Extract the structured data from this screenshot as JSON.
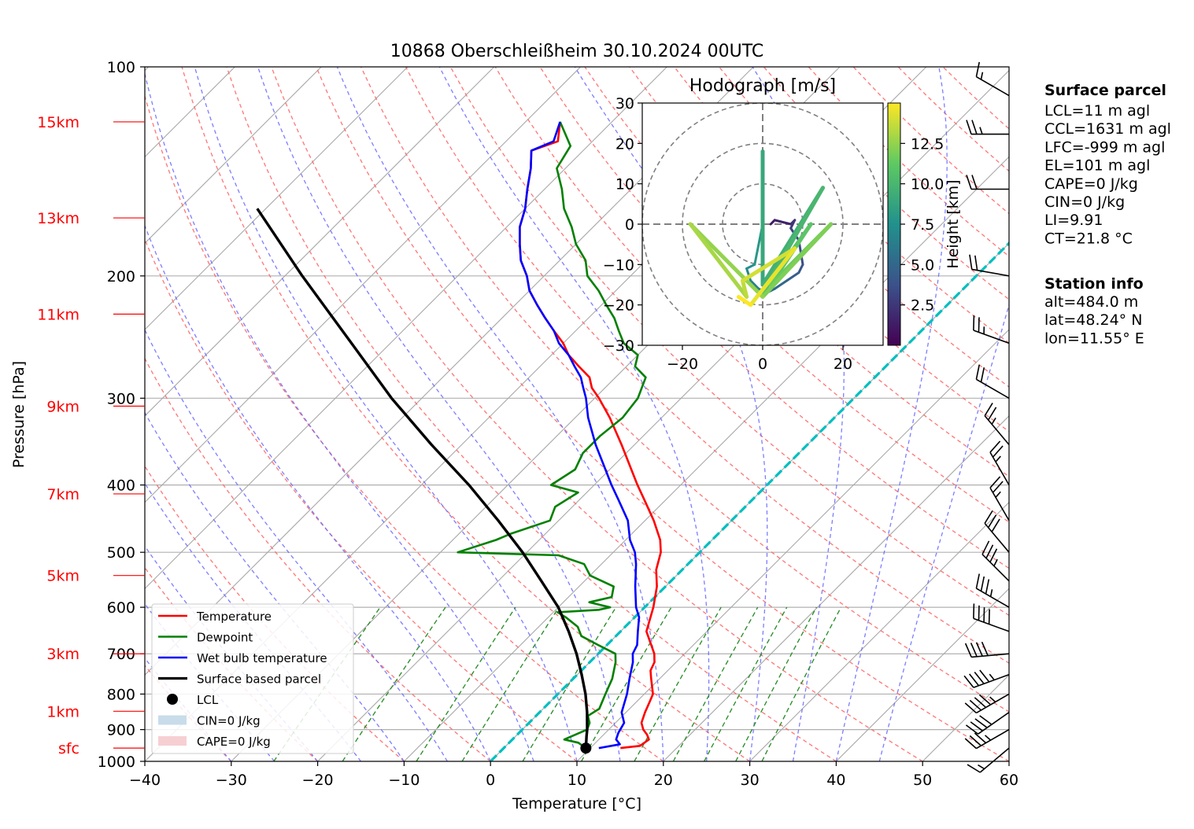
{
  "chart_data": {
    "type": "line",
    "title": "10868 Oberschleißheim 30.10.2024 00UTC",
    "xlabel": "Temperature [°C]",
    "ylabel": "Pressure [hPa]",
    "xlim": [
      -40,
      60
    ],
    "ylim": [
      1000,
      100
    ],
    "y_scale": "log",
    "skew": "45 degrees",
    "grid": true,
    "x_ticks": [
      "−40",
      "−30",
      "−20",
      "−10",
      "0",
      "10",
      "20",
      "30",
      "40",
      "50",
      "60"
    ],
    "y_ticks": [
      {
        "label": "100",
        "p": 100
      },
      {
        "label": "200",
        "p": 200
      },
      {
        "label": "300",
        "p": 300
      },
      {
        "label": "400",
        "p": 400
      },
      {
        "label": "500",
        "p": 500
      },
      {
        "label": "600",
        "p": 600
      },
      {
        "label": "700",
        "p": 700
      },
      {
        "label": "800",
        "p": 800
      },
      {
        "label": "900",
        "p": 900
      },
      {
        "label": "1000",
        "p": 1000
      }
    ],
    "height_labels": [
      {
        "label": "sfc",
        "p": 957
      },
      {
        "label": "1km",
        "p": 847
      },
      {
        "label": "3km",
        "p": 700
      },
      {
        "label": "5km",
        "p": 540
      },
      {
        "label": "7km",
        "p": 412
      },
      {
        "label": "9km",
        "p": 308
      },
      {
        "label": "11km",
        "p": 227
      },
      {
        "label": "13km",
        "p": 165
      },
      {
        "label": "15km",
        "p": 120
      }
    ],
    "series": [
      {
        "name": "Temperature",
        "color": "#ff0000",
        "points": [
          [
            957,
            13.5
          ],
          [
            950,
            15.5
          ],
          [
            930,
            15.8
          ],
          [
            915,
            15.0
          ],
          [
            900,
            14.0
          ],
          [
            880,
            13.0
          ],
          [
            850,
            12.2
          ],
          [
            820,
            11.5
          ],
          [
            800,
            11.0
          ],
          [
            760,
            9.0
          ],
          [
            740,
            8.0
          ],
          [
            720,
            7.5
          ],
          [
            700,
            6.5
          ],
          [
            650,
            3.0
          ],
          [
            600,
            1.0
          ],
          [
            560,
            -1.0
          ],
          [
            530,
            -3.0
          ],
          [
            500,
            -4.5
          ],
          [
            480,
            -6.0
          ],
          [
            450,
            -9.0
          ],
          [
            420,
            -12.5
          ],
          [
            400,
            -15.0
          ],
          [
            380,
            -17.5
          ],
          [
            350,
            -21.5
          ],
          [
            320,
            -26.0
          ],
          [
            300,
            -29.5
          ],
          [
            290,
            -31.5
          ],
          [
            280,
            -33.0
          ],
          [
            270,
            -35.5
          ],
          [
            260,
            -38.0
          ],
          [
            250,
            -40.0
          ],
          [
            240,
            -42.5
          ],
          [
            230,
            -45.0
          ],
          [
            220,
            -47.5
          ],
          [
            210,
            -50.0
          ],
          [
            200,
            -52.0
          ],
          [
            190,
            -54.5
          ],
          [
            180,
            -56.5
          ],
          [
            170,
            -58.5
          ],
          [
            160,
            -60.0
          ],
          [
            150,
            -62.0
          ],
          [
            140,
            -64.0
          ],
          [
            132,
            -66.0
          ],
          [
            128,
            -64.0
          ],
          [
            120,
            -66.0
          ]
        ]
      },
      {
        "name": "Dewpoint",
        "color": "#008000",
        "points": [
          [
            957,
            9.5
          ],
          [
            940,
            8.0
          ],
          [
            930,
            6.0
          ],
          [
            900,
            7.5
          ],
          [
            880,
            7.0
          ],
          [
            860,
            6.0
          ],
          [
            840,
            6.5
          ],
          [
            800,
            5.5
          ],
          [
            760,
            4.5
          ],
          [
            720,
            3.0
          ],
          [
            700,
            2.0
          ],
          [
            680,
            -1.0
          ],
          [
            660,
            -4.0
          ],
          [
            640,
            -5.5
          ],
          [
            620,
            -8.0
          ],
          [
            610,
            -9.5
          ],
          [
            605,
            -5.0
          ],
          [
            600,
            -4.0
          ],
          [
            590,
            -7.0
          ],
          [
            580,
            -5.0
          ],
          [
            560,
            -6.0
          ],
          [
            540,
            -10.0
          ],
          [
            520,
            -12.0
          ],
          [
            505,
            -16.0
          ],
          [
            500,
            -28.0
          ],
          [
            480,
            -25.0
          ],
          [
            470,
            -24.0
          ],
          [
            450,
            -21.0
          ],
          [
            430,
            -22.0
          ],
          [
            410,
            -21.0
          ],
          [
            400,
            -25.0
          ],
          [
            380,
            -24.0
          ],
          [
            360,
            -25.0
          ],
          [
            340,
            -25.0
          ],
          [
            320,
            -24.5
          ],
          [
            300,
            -25.0
          ],
          [
            280,
            -26.5
          ],
          [
            270,
            -29.0
          ],
          [
            260,
            -30.0
          ],
          [
            250,
            -33.0
          ],
          [
            240,
            -35.0
          ],
          [
            230,
            -37.0
          ],
          [
            220,
            -39.5
          ],
          [
            210,
            -42.0
          ],
          [
            200,
            -45.0
          ],
          [
            190,
            -47.0
          ],
          [
            180,
            -50.0
          ],
          [
            170,
            -52.5
          ],
          [
            160,
            -55.5
          ],
          [
            150,
            -58.0
          ],
          [
            140,
            -61.0
          ],
          [
            130,
            -62.0
          ],
          [
            120,
            -66.0
          ]
        ]
      },
      {
        "name": "Wet bulb temperature",
        "color": "#0000ff",
        "points": [
          [
            957,
            11.0
          ],
          [
            945,
            13.0
          ],
          [
            930,
            12.0
          ],
          [
            910,
            11.5
          ],
          [
            880,
            11.0
          ],
          [
            850,
            9.5
          ],
          [
            800,
            8.0
          ],
          [
            760,
            6.5
          ],
          [
            720,
            5.0
          ],
          [
            700,
            4.0
          ],
          [
            680,
            3.5
          ],
          [
            650,
            2.0
          ],
          [
            620,
            0.5
          ],
          [
            600,
            -1.0
          ],
          [
            560,
            -3.5
          ],
          [
            520,
            -6.0
          ],
          [
            500,
            -7.5
          ],
          [
            480,
            -9.5
          ],
          [
            450,
            -12.0
          ],
          [
            420,
            -15.5
          ],
          [
            400,
            -18.0
          ],
          [
            380,
            -20.5
          ],
          [
            350,
            -24.5
          ],
          [
            320,
            -28.5
          ],
          [
            300,
            -31.0
          ],
          [
            290,
            -32.5
          ],
          [
            280,
            -34.0
          ],
          [
            270,
            -36.0
          ],
          [
            260,
            -38.0
          ],
          [
            250,
            -40.5
          ],
          [
            240,
            -42.5
          ],
          [
            230,
            -45.0
          ],
          [
            220,
            -47.5
          ],
          [
            210,
            -50.0
          ],
          [
            200,
            -52.0
          ],
          [
            190,
            -54.5
          ],
          [
            180,
            -56.5
          ],
          [
            170,
            -58.5
          ],
          [
            160,
            -60.0
          ],
          [
            150,
            -62.0
          ],
          [
            140,
            -64.0
          ],
          [
            132,
            -66.0
          ],
          [
            128,
            -64.5
          ],
          [
            120,
            -66.0
          ]
        ]
      },
      {
        "name": "Surface based parcel",
        "color": "#000000",
        "points": [
          [
            957,
            9.5
          ],
          [
            920,
            8.2
          ],
          [
            900,
            7.5
          ],
          [
            850,
            5.5
          ],
          [
            800,
            3.2
          ],
          [
            750,
            0.5
          ],
          [
            700,
            -2.5
          ],
          [
            650,
            -6.0
          ],
          [
            600,
            -10.0
          ],
          [
            550,
            -15.0
          ],
          [
            500,
            -20.5
          ],
          [
            450,
            -27.0
          ],
          [
            400,
            -34.5
          ],
          [
            350,
            -43.5
          ],
          [
            300,
            -53.5
          ],
          [
            250,
            -64.5
          ],
          [
            200,
            -78.0
          ],
          [
            160,
            -91.0
          ]
        ]
      }
    ],
    "lcl": {
      "label": "LCL",
      "p": 957,
      "t": 9.5
    },
    "fill_legend": [
      {
        "label": "CIN=0 J/kg",
        "color": "#c8dcea"
      },
      {
        "label": "CAPE=0 J/kg",
        "color": "#f6cfd2"
      }
    ],
    "zero_isotherm_line": {
      "color": "#00bfbf"
    },
    "dry_adiabat_color": "#ff6666",
    "moist_adiabat_color": "#6666ff",
    "mixing_ratio_color": "#228b22",
    "wind_barbs": [
      {
        "p": 957,
        "speed_kt": 15,
        "dir": 230
      },
      {
        "p": 900,
        "speed_kt": 35,
        "dir": 240
      },
      {
        "p": 850,
        "speed_kt": 40,
        "dir": 235
      },
      {
        "p": 800,
        "speed_kt": 45,
        "dir": 240
      },
      {
        "p": 750,
        "speed_kt": 45,
        "dir": 250
      },
      {
        "p": 700,
        "speed_kt": 40,
        "dir": 265
      },
      {
        "p": 650,
        "speed_kt": 40,
        "dir": 290
      },
      {
        "p": 600,
        "speed_kt": 35,
        "dir": 300
      },
      {
        "p": 550,
        "speed_kt": 35,
        "dir": 315
      },
      {
        "p": 500,
        "speed_kt": 30,
        "dir": 320
      },
      {
        "p": 450,
        "speed_kt": 25,
        "dir": 330
      },
      {
        "p": 400,
        "speed_kt": 25,
        "dir": 330
      },
      {
        "p": 350,
        "speed_kt": 25,
        "dir": 320
      },
      {
        "p": 300,
        "speed_kt": 20,
        "dir": 300
      },
      {
        "p": 250,
        "speed_kt": 25,
        "dir": 290
      },
      {
        "p": 200,
        "speed_kt": 20,
        "dir": 280
      },
      {
        "p": 150,
        "speed_kt": 20,
        "dir": 270
      },
      {
        "p": 125,
        "speed_kt": 25,
        "dir": 270
      },
      {
        "p": 110,
        "speed_kt": 15,
        "dir": 300
      }
    ],
    "hodograph": {
      "title": "Hodograph [m/s]",
      "xlim": [
        -30,
        30
      ],
      "ylim": [
        -30,
        30
      ],
      "x_ticks": [
        "−20",
        "0",
        "20"
      ],
      "y_ticks": [
        "30",
        "20",
        "10",
        "0",
        "−10",
        "−20",
        "−30"
      ],
      "rings": [
        10,
        20,
        30
      ],
      "colorbar_label": "Height [km]",
      "colorbar_ticks": [
        "2.5",
        "5.0",
        "7.5",
        "10.0",
        "12.5"
      ],
      "colorbar_range": [
        0,
        15
      ],
      "trace": [
        {
          "h": 0.5,
          "u": 2,
          "v": 0
        },
        {
          "h": 1.0,
          "u": 3,
          "v": 1
        },
        {
          "h": 1.5,
          "u": 7,
          "v": 0
        },
        {
          "h": 2.0,
          "u": 8,
          "v": 1
        },
        {
          "h": 2.5,
          "u": 7,
          "v": -1
        },
        {
          "h": 3.0,
          "u": 9,
          "v": -4
        },
        {
          "h": 3.5,
          "u": 10,
          "v": -10
        },
        {
          "h": 4.0,
          "u": 9,
          "v": -12
        },
        {
          "h": 4.5,
          "u": 6,
          "v": -14
        },
        {
          "h": 5.0,
          "u": 3,
          "v": -16
        },
        {
          "h": 5.5,
          "u": 1,
          "v": -17
        },
        {
          "h": 6.0,
          "u": -1,
          "v": -16
        },
        {
          "h": 6.5,
          "u": -3,
          "v": -14
        },
        {
          "h": 7.0,
          "u": -4,
          "v": -11
        },
        {
          "h": 7.5,
          "u": -2,
          "v": -10
        },
        {
          "h": 8.0,
          "u": 0,
          "v": 0
        },
        {
          "h": 8.5,
          "u": 0,
          "v": 18
        },
        {
          "h": 9.0,
          "u": 0,
          "v": -15
        },
        {
          "h": 9.5,
          "u": 15,
          "v": 9
        },
        {
          "h": 10.0,
          "u": 0,
          "v": -17
        },
        {
          "h": 10.5,
          "u": 12,
          "v": 0
        },
        {
          "h": 11.0,
          "u": 2,
          "v": -15
        },
        {
          "h": 11.5,
          "u": 17,
          "v": 0
        },
        {
          "h": 12.0,
          "u": 0,
          "v": -18
        },
        {
          "h": 12.5,
          "u": -18,
          "v": 0
        },
        {
          "h": 13.0,
          "u": -4,
          "v": -18
        },
        {
          "h": 13.5,
          "u": -5,
          "v": -14
        },
        {
          "h": 14.0,
          "u": 8,
          "v": -6
        },
        {
          "h": 14.5,
          "u": -3,
          "v": -20
        },
        {
          "h": 15.0,
          "u": -6,
          "v": -18
        }
      ]
    }
  },
  "surface_parcel": {
    "heading": "Surface parcel",
    "lines": [
      "LCL=11 m agl",
      "CCL=1631 m agl",
      "LFC=-999 m agl",
      "EL=101 m agl",
      "CAPE=0 J/kg",
      "CIN=0 J/kg",
      "LI=9.91",
      "CT=21.8 °C"
    ]
  },
  "station_info": {
    "heading": "Station info",
    "lines": [
      "alt=484.0 m",
      "lat=48.24° N",
      "lon=11.55° E"
    ]
  },
  "legend": [
    {
      "label": "Temperature",
      "type": "line",
      "color": "#ff0000"
    },
    {
      "label": "Dewpoint",
      "type": "line",
      "color": "#008000"
    },
    {
      "label": "Wet bulb temperature",
      "type": "line",
      "color": "#0000ff"
    },
    {
      "label": "Surface based parcel",
      "type": "line",
      "color": "#000000"
    },
    {
      "label": "LCL",
      "type": "marker",
      "color": "#000000"
    },
    {
      "label": "CIN=0 J/kg",
      "type": "patch",
      "color": "#c8dcea"
    },
    {
      "label": "CAPE=0 J/kg",
      "type": "patch",
      "color": "#f6cfd2"
    }
  ]
}
